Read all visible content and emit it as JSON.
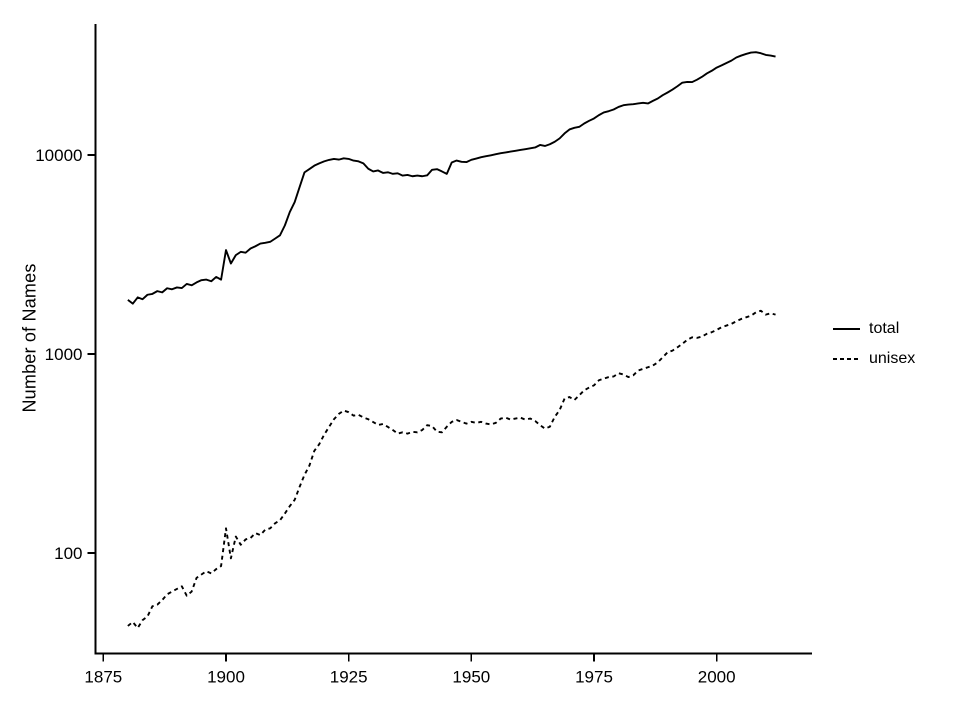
{
  "chart": {
    "ylabel": "Number of Names",
    "xlabel": "",
    "title": ""
  },
  "legend": {
    "items": [
      {
        "label": "total",
        "style": "solid"
      },
      {
        "label": "unisex",
        "style": "dashed"
      }
    ]
  },
  "colors": {
    "line": "#000000",
    "text": "#000000",
    "background": "#ffffff"
  },
  "chart_data": {
    "type": "line",
    "title": "",
    "xlabel": "",
    "ylabel": "Number of Names",
    "y_scale": "log10",
    "grid": false,
    "legend_position": "right",
    "x_ticks": [
      1875,
      1900,
      1925,
      1950,
      1975,
      2000
    ],
    "y_ticks": [
      100,
      1000,
      10000
    ],
    "xlim": [
      1873,
      2019.5
    ],
    "ylim": [
      31.5,
      45500
    ],
    "x": [
      1880,
      1881,
      1882,
      1883,
      1884,
      1885,
      1886,
      1887,
      1888,
      1889,
      1890,
      1891,
      1892,
      1893,
      1894,
      1895,
      1896,
      1897,
      1898,
      1899,
      1900,
      1901,
      1902,
      1903,
      1904,
      1905,
      1906,
      1907,
      1908,
      1909,
      1910,
      1911,
      1912,
      1913,
      1914,
      1915,
      1916,
      1917,
      1918,
      1919,
      1920,
      1921,
      1922,
      1923,
      1924,
      1925,
      1926,
      1927,
      1928,
      1929,
      1930,
      1931,
      1932,
      1933,
      1934,
      1935,
      1936,
      1937,
      1938,
      1939,
      1940,
      1941,
      1942,
      1943,
      1944,
      1945,
      1946,
      1947,
      1948,
      1949,
      1950,
      1951,
      1952,
      1953,
      1954,
      1955,
      1956,
      1957,
      1958,
      1959,
      1960,
      1961,
      1962,
      1963,
      1964,
      1965,
      1966,
      1967,
      1968,
      1969,
      1970,
      1971,
      1972,
      1973,
      1974,
      1975,
      1976,
      1977,
      1978,
      1979,
      1980,
      1981,
      1982,
      1983,
      1984,
      1985,
      1986,
      1987,
      1988,
      1989,
      1990,
      1991,
      1992,
      1993,
      1994,
      1995,
      1996,
      1997,
      1998,
      1999,
      2000,
      2001,
      2002,
      2003,
      2004,
      2005,
      2006,
      2007,
      2008,
      2009,
      2010,
      2011,
      2012
    ],
    "series": [
      {
        "name": "total",
        "line_style": "solid",
        "values": [
          1870,
          1790,
          1925,
          1885,
          1985,
          2005,
          2070,
          2040,
          2140,
          2115,
          2160,
          2145,
          2250,
          2215,
          2290,
          2350,
          2365,
          2320,
          2440,
          2365,
          3330,
          2850,
          3140,
          3260,
          3230,
          3390,
          3480,
          3590,
          3620,
          3660,
          3800,
          3950,
          4430,
          5170,
          5800,
          6900,
          8180,
          8500,
          8840,
          9080,
          9290,
          9450,
          9560,
          9480,
          9620,
          9560,
          9370,
          9290,
          9080,
          8530,
          8270,
          8360,
          8130,
          8190,
          8040,
          8090,
          7880,
          7940,
          7820,
          7880,
          7820,
          7900,
          8430,
          8490,
          8270,
          8040,
          9170,
          9380,
          9240,
          9210,
          9460,
          9600,
          9750,
          9860,
          9970,
          10090,
          10210,
          10300,
          10400,
          10500,
          10600,
          10700,
          10810,
          10910,
          11230,
          11100,
          11320,
          11660,
          12120,
          12840,
          13440,
          13700,
          13850,
          14400,
          14850,
          15260,
          15860,
          16360,
          16610,
          16930,
          17440,
          17790,
          17930,
          18000,
          18150,
          18300,
          18150,
          18700,
          19230,
          19980,
          20610,
          21330,
          22150,
          23100,
          23300,
          23250,
          23900,
          24700,
          25700,
          26500,
          27500,
          28200,
          29000,
          29800,
          30900,
          31600,
          32200,
          32700,
          32840,
          32470,
          31840,
          31590,
          31230
        ]
      },
      {
        "name": "unisex",
        "line_style": "dashed",
        "values": [
          43,
          45,
          42,
          46,
          48,
          54,
          55,
          58,
          62,
          64,
          66,
          68,
          61,
          64,
          75,
          78,
          81,
          79,
          83,
          86,
          133,
          94,
          121,
          110,
          117,
          119,
          126,
          123,
          131,
          133,
          141,
          146,
          158,
          172,
          185,
          215,
          247,
          275,
          326,
          352,
          393,
          430,
          470,
          500,
          520,
          510,
          490,
          495,
          480,
          470,
          455,
          440,
          445,
          430,
          415,
          398,
          404,
          398,
          406,
          404,
          415,
          439,
          434,
          407,
          404,
          431,
          456,
          466,
          456,
          447,
          456,
          451,
          456,
          447,
          443,
          451,
          474,
          479,
          468,
          474,
          479,
          468,
          474,
          461,
          439,
          422,
          431,
          483,
          523,
          597,
          608,
          587,
          620,
          657,
          678,
          696,
          738,
          752,
          766,
          771,
          801,
          789,
          766,
          781,
          826,
          842,
          858,
          875,
          908,
          962,
          1020,
          1040,
          1080,
          1125,
          1178,
          1213,
          1205,
          1224,
          1263,
          1287,
          1322,
          1363,
          1390,
          1417,
          1460,
          1500,
          1529,
          1559,
          1619,
          1650,
          1577,
          1601,
          1577
        ]
      }
    ]
  }
}
